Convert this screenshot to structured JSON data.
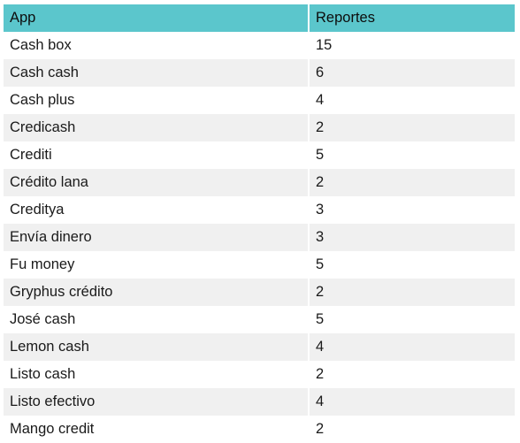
{
  "table": {
    "headers": [
      "App",
      "Reportes"
    ],
    "rows": [
      [
        "Cash box",
        "15"
      ],
      [
        "Cash cash",
        "6"
      ],
      [
        "Cash plus",
        "4"
      ],
      [
        "Credicash",
        "2"
      ],
      [
        "Crediti",
        "5"
      ],
      [
        "Crédito lana",
        "2"
      ],
      [
        "Creditya",
        "3"
      ],
      [
        "Envía dinero",
        "3"
      ],
      [
        "Fu money",
        "5"
      ],
      [
        "Gryphus crédito",
        "2"
      ],
      [
        "José cash",
        "5"
      ],
      [
        "Lemon cash",
        "4"
      ],
      [
        "Listo cash",
        "2"
      ],
      [
        "Listo efectivo",
        "4"
      ],
      [
        "Mango credit",
        "2"
      ]
    ]
  },
  "colors": {
    "header_bg": "#5bc6cc",
    "row_alt_bg": "#f0f0f0"
  }
}
